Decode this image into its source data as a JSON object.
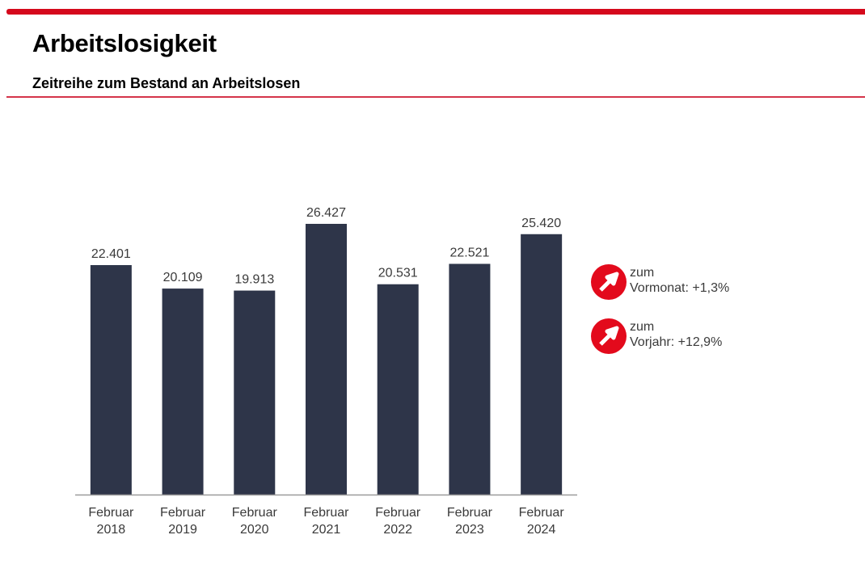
{
  "header": {
    "title": "Arbeitslosigkeit",
    "subtitle": "Zeitreihe zum Bestand an Arbeitslosen"
  },
  "colors": {
    "accent": "#d5091c",
    "bar": "#2e3549",
    "indicator": "#e30a1c"
  },
  "chart_data": {
    "type": "bar",
    "title": "Zeitreihe zum Bestand an Arbeitslosen",
    "xlabel": "",
    "ylabel": "",
    "categories": [
      [
        "Februar",
        "2018"
      ],
      [
        "Februar",
        "2019"
      ],
      [
        "Februar",
        "2020"
      ],
      [
        "Februar",
        "2021"
      ],
      [
        "Februar",
        "2022"
      ],
      [
        "Februar",
        "2023"
      ],
      [
        "Februar",
        "2024"
      ]
    ],
    "values": [
      22401,
      20109,
      19913,
      26427,
      20531,
      22521,
      25420
    ],
    "value_labels": [
      "22.401",
      "20.109",
      "19.913",
      "26.427",
      "20.531",
      "22.521",
      "25.420"
    ],
    "ylim": [
      0,
      26427
    ],
    "grid": false,
    "legend": "none"
  },
  "indicators": [
    {
      "icon": "arrow-up-right-icon",
      "line1": "zum",
      "label": "Vormonat:",
      "value": "+1,3%"
    },
    {
      "icon": "arrow-up-right-icon",
      "line1": "zum",
      "label": "Vorjahr:",
      "value": "+12,9%"
    }
  ]
}
